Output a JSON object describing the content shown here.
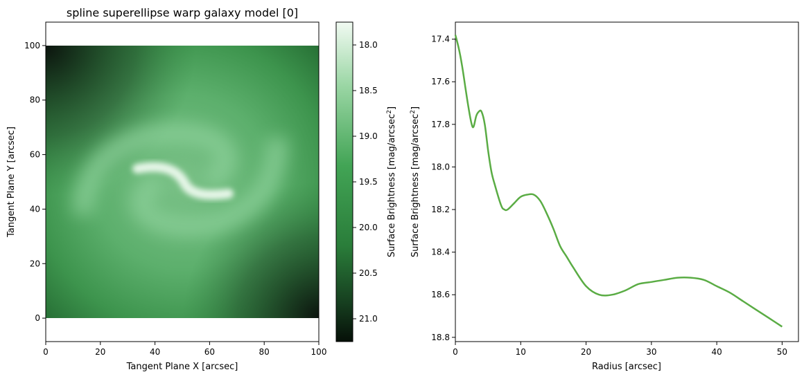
{
  "chart_data": [
    {
      "type": "heatmap",
      "title": "spline superellipse warp galaxy model [0]",
      "xlabel": "Tangent Plane X [arcsec]",
      "ylabel": "Tangent Plane Y [arcsec]",
      "xlim": [
        0,
        100
      ],
      "ylim": [
        -8.6,
        108.6
      ],
      "extent": [
        0,
        100,
        0,
        100
      ],
      "xticks": [
        0,
        20,
        40,
        60,
        80,
        100
      ],
      "yticks": [
        0,
        20,
        40,
        60,
        80,
        100
      ],
      "colormap": [
        "#0a1a0d",
        "#2b7a3a",
        "#3a9a4a",
        "#7cc489",
        "#f1faf2"
      ],
      "colorbar": {
        "label": "Surface Brightness [mag/arcsec",
        "label_sup": "2",
        "label_end": "]",
        "range": [
          17.75,
          21.25
        ],
        "ticks": [
          18.0,
          18.5,
          19.0,
          19.5,
          20.0,
          20.5,
          21.0
        ],
        "reversed": true
      }
    },
    {
      "type": "line",
      "title": "",
      "xlabel": "Radius [arcsec]",
      "ylabel": "Surface Brightness [mag/arcsec",
      "ylabel_sup": "2",
      "ylabel_end": "]",
      "xlim": [
        0,
        52.5
      ],
      "ylim": [
        18.82,
        17.32
      ],
      "y_inverted": true,
      "xticks": [
        0,
        10,
        20,
        30,
        40,
        50
      ],
      "yticks": [
        17.4,
        17.6,
        17.8,
        18.0,
        18.2,
        18.4,
        18.6,
        18.8
      ],
      "color": "#5aac44",
      "x": [
        0,
        0.5,
        1,
        1.5,
        2,
        2.5,
        2.8,
        3.2,
        3.6,
        4,
        4.5,
        5,
        5.5,
        6,
        7,
        7.5,
        8,
        9,
        10,
        11,
        12,
        13,
        14,
        15,
        16,
        17,
        18,
        20,
        22,
        24,
        26,
        28,
        30,
        32,
        34,
        36,
        38,
        40,
        42,
        44,
        46,
        48,
        50
      ],
      "y": [
        17.38,
        17.44,
        17.52,
        17.62,
        17.72,
        17.8,
        17.81,
        17.76,
        17.74,
        17.74,
        17.8,
        17.92,
        18.02,
        18.08,
        18.18,
        18.2,
        18.2,
        18.17,
        18.14,
        18.13,
        18.13,
        18.16,
        18.22,
        18.29,
        18.37,
        18.42,
        18.47,
        18.56,
        18.6,
        18.6,
        18.58,
        18.55,
        18.54,
        18.53,
        18.52,
        18.52,
        18.53,
        18.56,
        18.59,
        18.63,
        18.67,
        18.71,
        18.75
      ]
    }
  ]
}
